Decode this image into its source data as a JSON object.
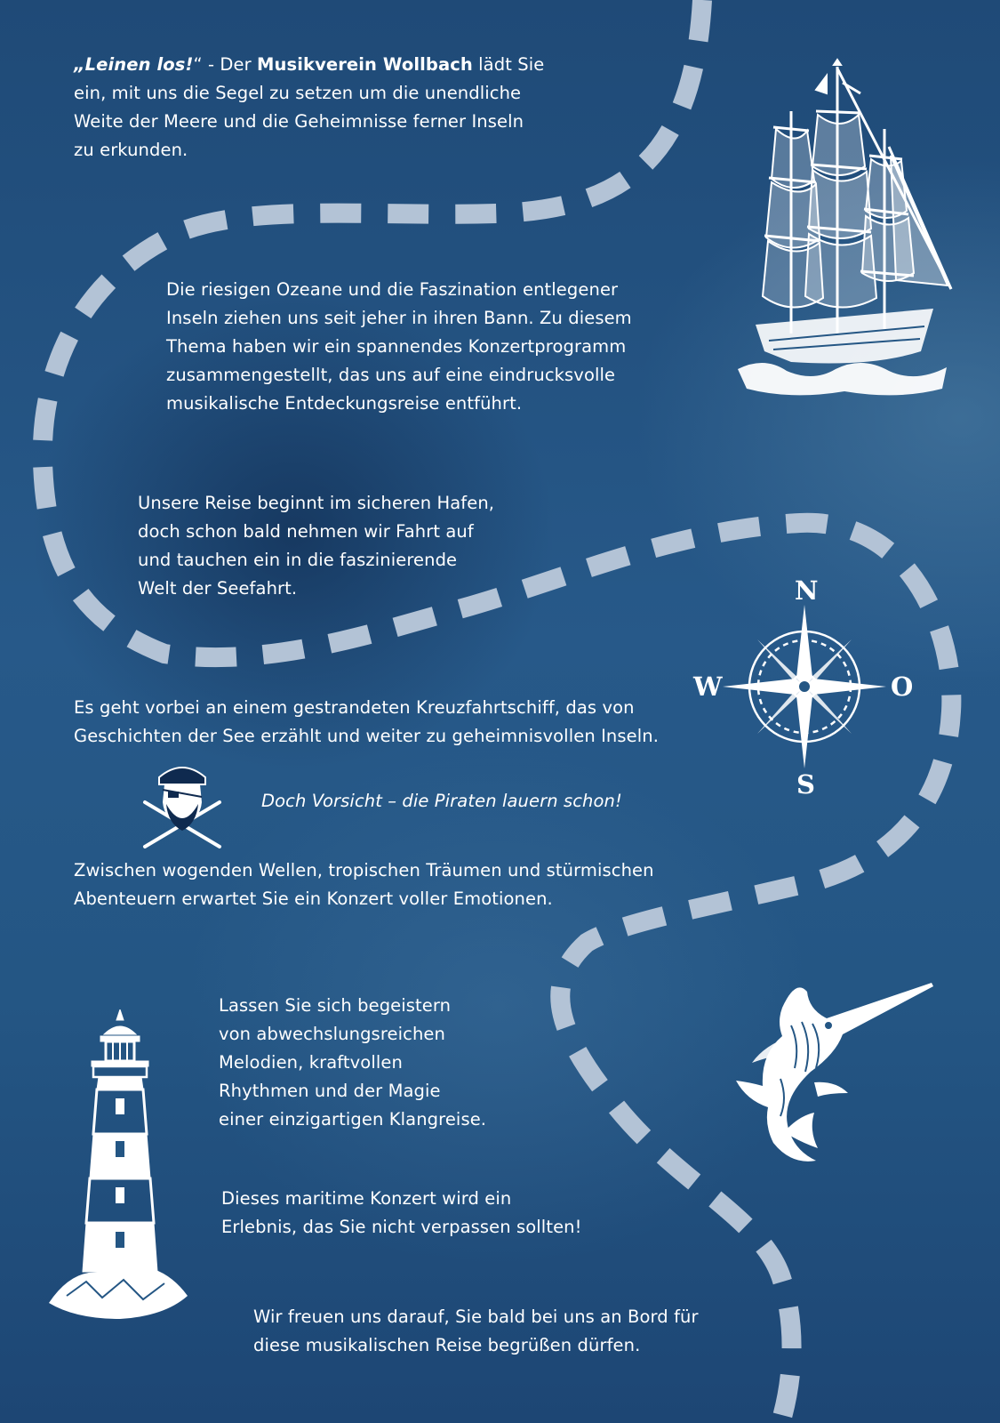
{
  "intro": {
    "slogan": "„Leinen los!",
    "quote_close": "“",
    "prefix": " - Der ",
    "org": "Musikverein Wollbach",
    "rest_line1": " lädt Sie",
    "lines": [
      "ein, mit uns die Segel zu setzen um die unendliche",
      "Weite der Meere und die Geheimnisse ferner Inseln",
      "zu erkunden."
    ]
  },
  "p2": [
    "Die riesigen Ozeane und die Faszination entlegener",
    "Inseln ziehen uns seit jeher in ihren Bann. Zu diesem",
    "Thema haben wir ein spannendes Konzertprogramm",
    "zusammengestellt, das uns auf eine eindrucksvolle",
    "musikalische Entdeckungsreise entführt."
  ],
  "p3": [
    "Unsere Reise beginnt im sicheren Hafen,",
    "doch schon bald nehmen wir Fahrt auf",
    "und tauchen ein in die faszinierende",
    "Welt der Seefahrt."
  ],
  "p4": [
    "Es geht vorbei an einem gestrandeten Kreuzfahrtschiff, das von",
    "Geschichten der See erzählt und weiter zu geheimnisvollen Inseln."
  ],
  "pirate_line": "Doch Vorsicht – die Piraten lauern schon!",
  "p5": [
    "Zwischen wogenden Wellen, tropischen Träumen und stürmischen",
    "Abenteuern erwartet Sie ein Konzert voller Emotionen."
  ],
  "p6": [
    "Lassen Sie sich begeistern",
    "von abwechslungsreichen",
    "Melodien, kraftvollen",
    "Rhythmen und der Magie",
    "einer einzigartigen Klangreise."
  ],
  "p7": [
    "Dieses maritime Konzert wird ein",
    "Erlebnis, das Sie nicht verpassen sollten!"
  ],
  "p8": [
    "Wir freuen uns darauf, Sie bald bei uns an Bord für",
    "diese musikalischen Reise begrüßen dürfen."
  ],
  "compass": {
    "north": "N",
    "south": "S",
    "west": "W",
    "east": "O"
  },
  "icons": {
    "ship": "sailing-ship-icon",
    "compass": "compass-rose-icon",
    "pirate": "pirate-icon",
    "lighthouse": "lighthouse-icon",
    "marlin": "marlin-icon"
  },
  "colors": {
    "background": "#245684",
    "route": "#b3c3d6",
    "text": "#ffffff"
  }
}
